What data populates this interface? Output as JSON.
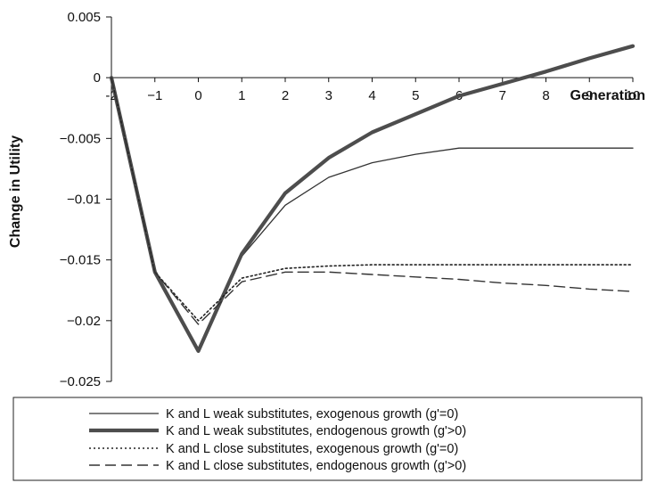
{
  "chart_data": {
    "type": "line",
    "title": "",
    "xlabel": "Generation",
    "ylabel": "Change in Utility",
    "x": [
      -2,
      -1,
      0,
      1,
      2,
      3,
      4,
      5,
      6,
      7,
      8,
      9,
      10
    ],
    "x_tick_labels": [
      "-2",
      "−1",
      "0",
      "1",
      "2",
      "3",
      "4",
      "5",
      "6",
      "7",
      "8",
      "9",
      "10"
    ],
    "y_ticks": [
      0.005,
      0,
      -0.005,
      -0.01,
      -0.015,
      -0.02,
      -0.025
    ],
    "y_tick_labels": [
      "0.005",
      "0",
      "−0.005",
      "−0.01",
      "−0.015",
      "−0.02",
      "−0.025"
    ],
    "xlim": [
      -2,
      10
    ],
    "ylim": [
      -0.025,
      0.005
    ],
    "grid": false,
    "legend_position": "bottom",
    "series": [
      {
        "name": "K and L weak substitutes, exogenous growth (g'=0)",
        "style": "solid-thin",
        "values": [
          0,
          -0.016,
          -0.0225,
          -0.0147,
          -0.0105,
          -0.0082,
          -0.007,
          -0.0063,
          -0.0058,
          -0.0058,
          -0.0058,
          -0.0058,
          -0.0058
        ]
      },
      {
        "name": "K and L weak substitutes, endogenous growth (g'>0)",
        "style": "solid-thick",
        "values": [
          0,
          -0.016,
          -0.0225,
          -0.0145,
          -0.0095,
          -0.0066,
          -0.0045,
          -0.003,
          -0.0015,
          -0.0005,
          0.0005,
          0.0016,
          0.0026
        ]
      },
      {
        "name": "K and L close substitutes, exogenous growth (g'=0)",
        "style": "dotted",
        "values": [
          0,
          -0.016,
          -0.02,
          -0.0165,
          -0.0157,
          -0.0155,
          -0.0154,
          -0.0154,
          -0.0154,
          -0.0154,
          -0.0154,
          -0.0154,
          -0.0154
        ]
      },
      {
        "name": "K and L close substitutes, endogenous growth (g'>0)",
        "style": "dashed",
        "values": [
          0,
          -0.016,
          -0.0203,
          -0.0168,
          -0.016,
          -0.016,
          -0.0162,
          -0.0164,
          -0.0166,
          -0.0169,
          -0.0171,
          -0.0174,
          -0.0176
        ]
      }
    ],
    "colors": {
      "axis": "#111111",
      "solid-thin": "#333333",
      "solid-thick": "#4d4d4d",
      "dotted": "#222222",
      "dashed": "#333333"
    }
  }
}
